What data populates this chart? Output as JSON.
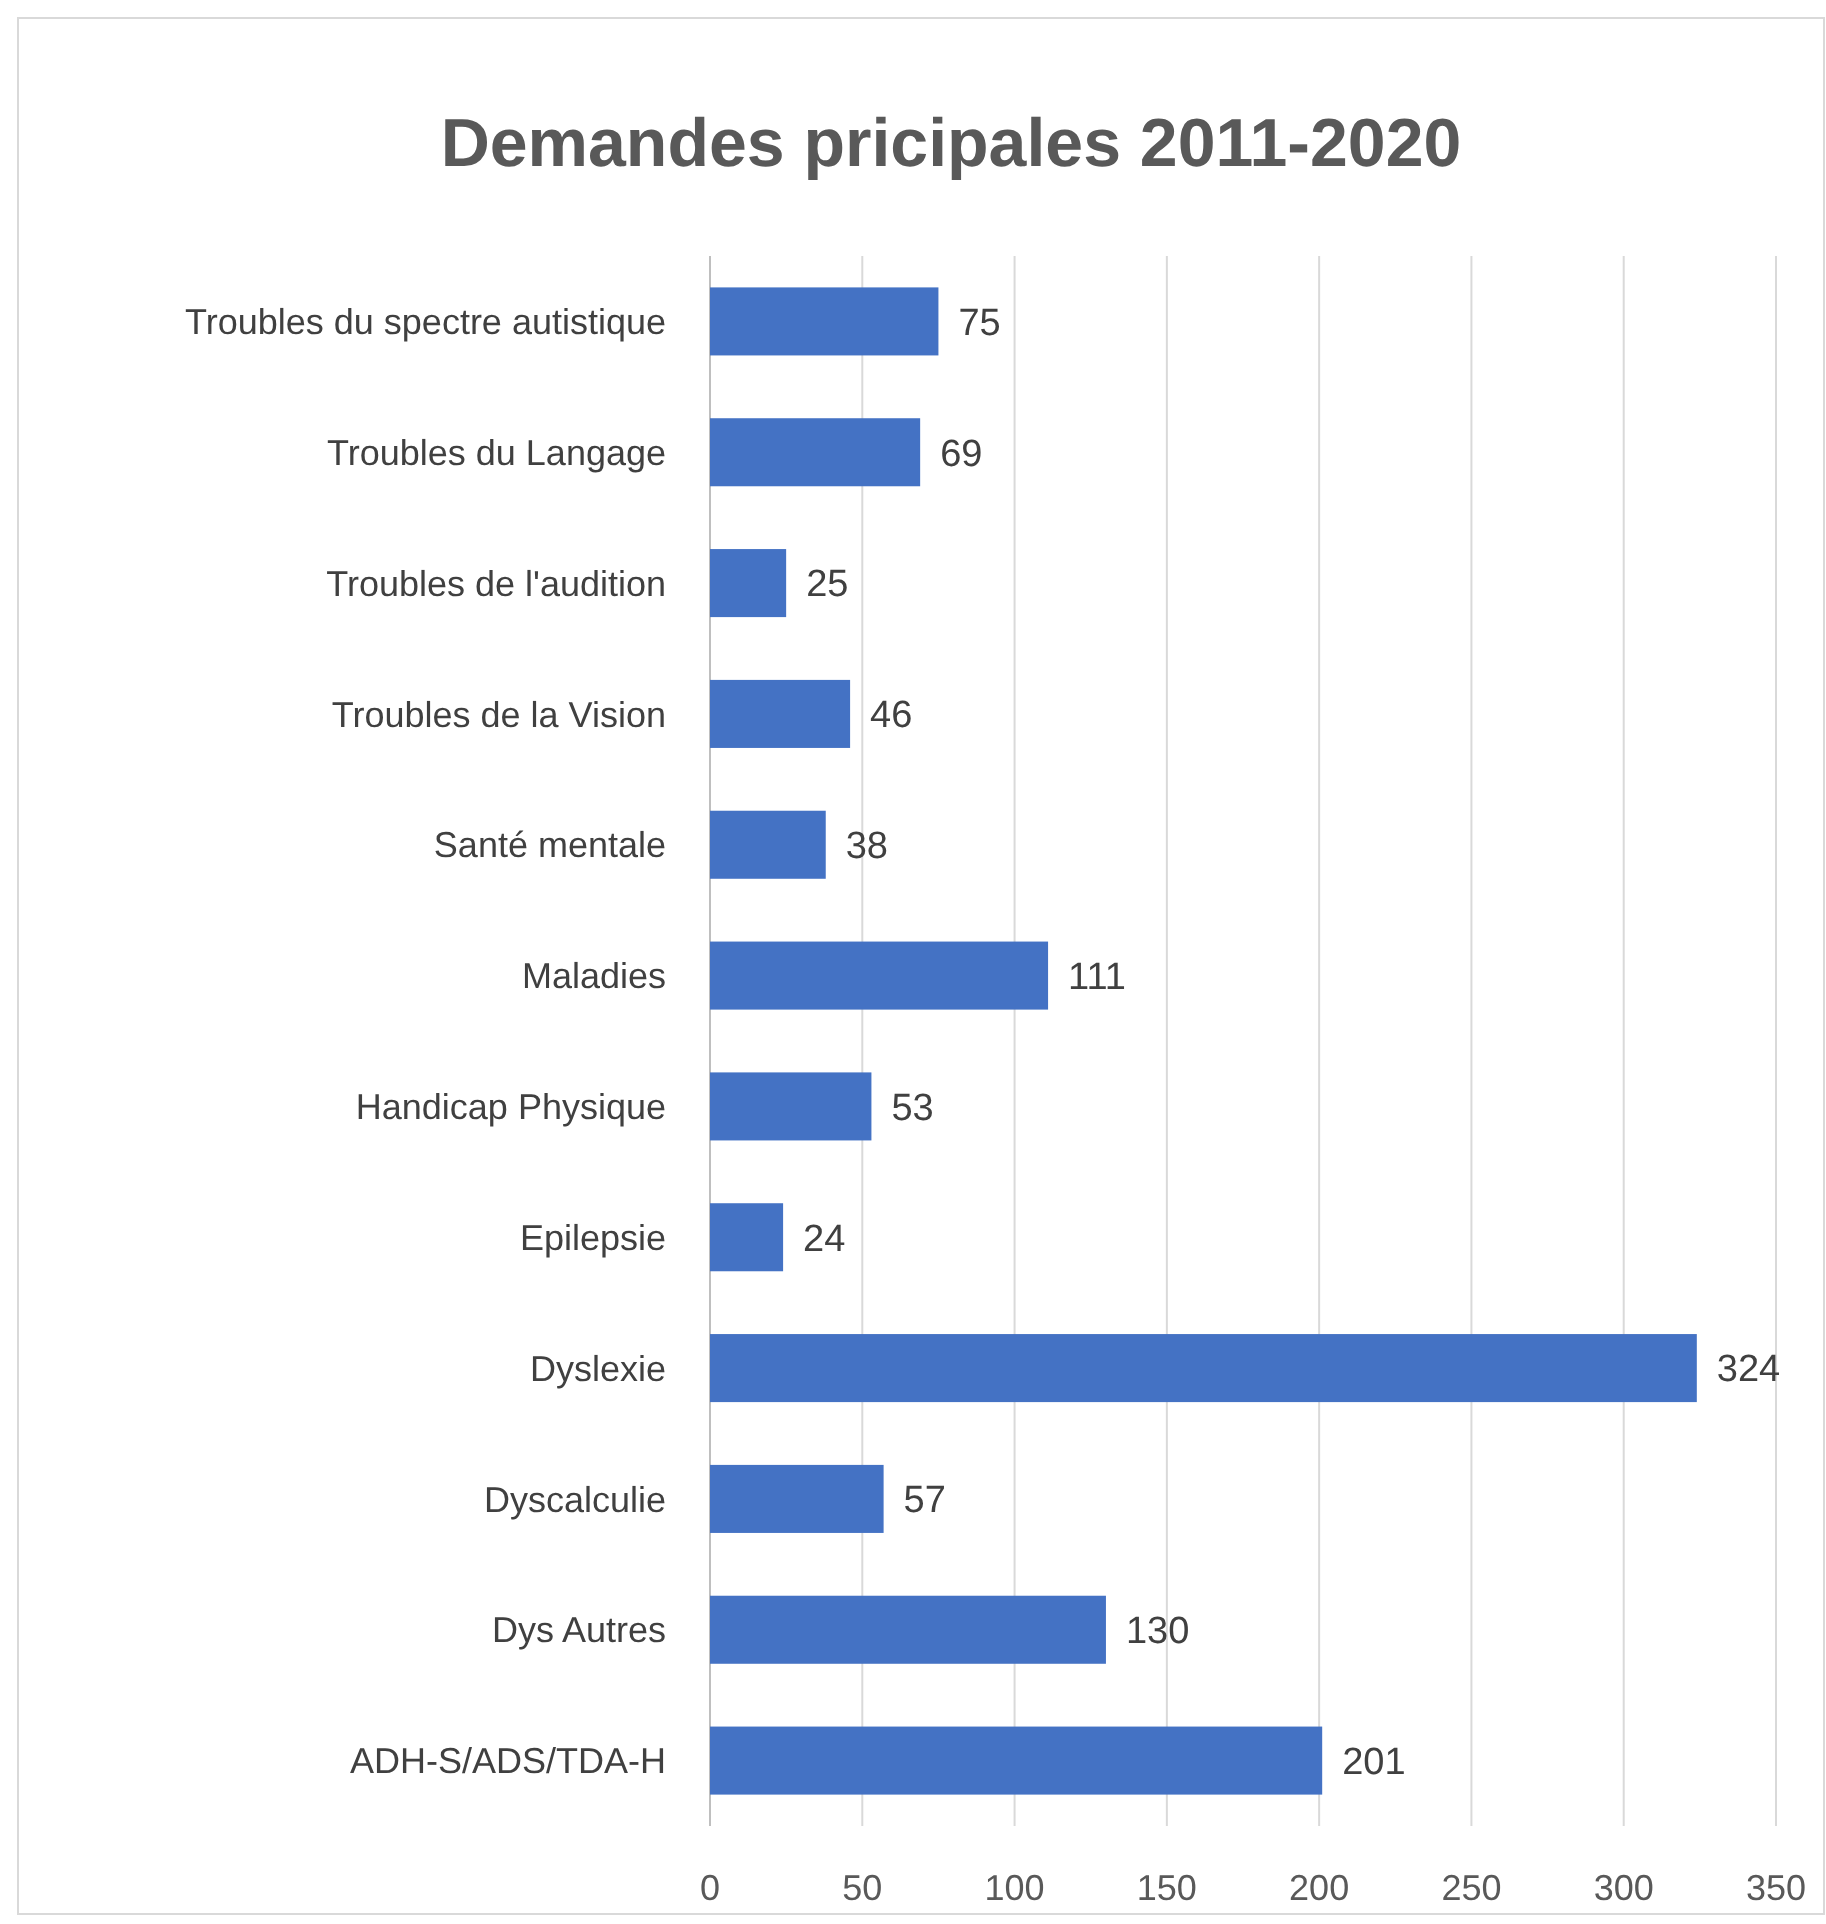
{
  "chart_data": {
    "type": "bar",
    "orientation": "horizontal",
    "title": "Demandes pricipales 2011-2020",
    "categories": [
      "Troubles du spectre autistique",
      "Troubles du Langage",
      "Troubles de l'audition",
      "Troubles de la Vision",
      "Santé mentale",
      "Maladies",
      "Handicap Physique",
      "Epilepsie",
      "Dyslexie",
      "Dyscalculie",
      "Dys Autres",
      "ADH-S/ADS/TDA-H"
    ],
    "values": [
      75,
      69,
      25,
      46,
      38,
      111,
      53,
      24,
      324,
      57,
      130,
      201
    ],
    "color": "#4472c4",
    "xlim": [
      0,
      350
    ],
    "xticks": [
      0,
      50,
      100,
      150,
      200,
      250,
      300,
      350
    ],
    "grid": "x",
    "data_labels": true
  }
}
